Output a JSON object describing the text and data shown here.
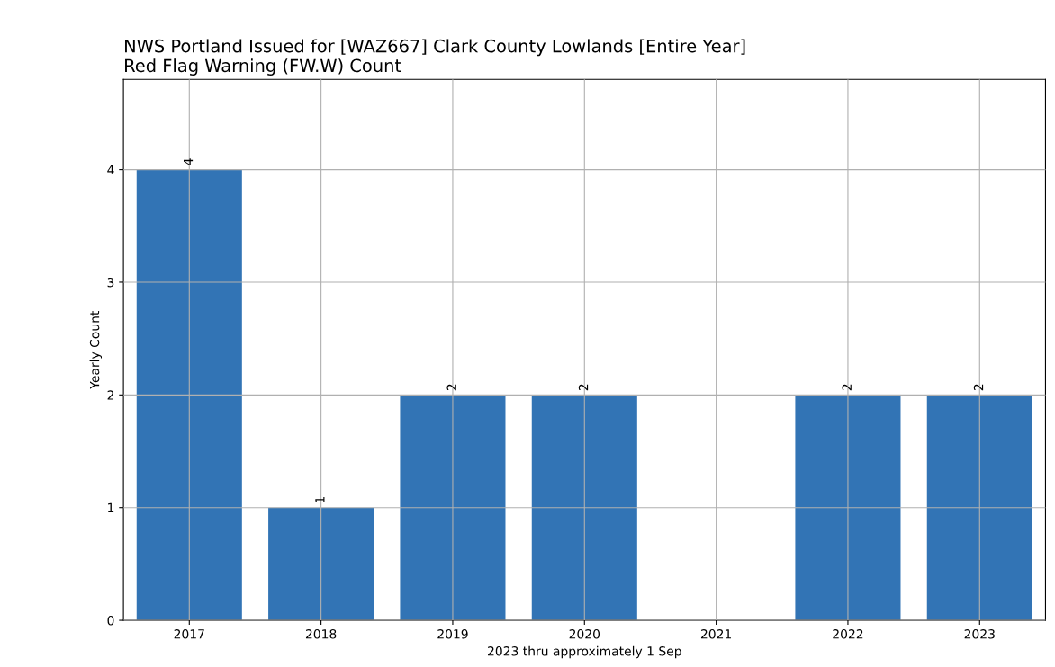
{
  "chart_data": {
    "type": "bar",
    "title": "NWS Portland Issued for [WAZ667] Clark County Lowlands [Entire Year]\nRed Flag Warning (FW.W) Count",
    "xlabel": "2023 thru approximately 1 Sep",
    "ylabel": "Yearly Count",
    "x": [
      2017,
      2018,
      2019,
      2020,
      2021,
      2022,
      2023
    ],
    "values": [
      4,
      1,
      2,
      2,
      0,
      2,
      2
    ],
    "value_labels": [
      "4",
      "1",
      "2",
      "2",
      null,
      "2",
      "2"
    ],
    "color": "#3274b5",
    "xlim": [
      2016.5,
      2023.5
    ],
    "xticks": [
      2017,
      2018,
      2019,
      2020,
      2021,
      2022,
      2023
    ],
    "ylim": [
      0,
      4.8
    ],
    "yticks": [
      0,
      1,
      2,
      3,
      4
    ],
    "grid": true
  }
}
